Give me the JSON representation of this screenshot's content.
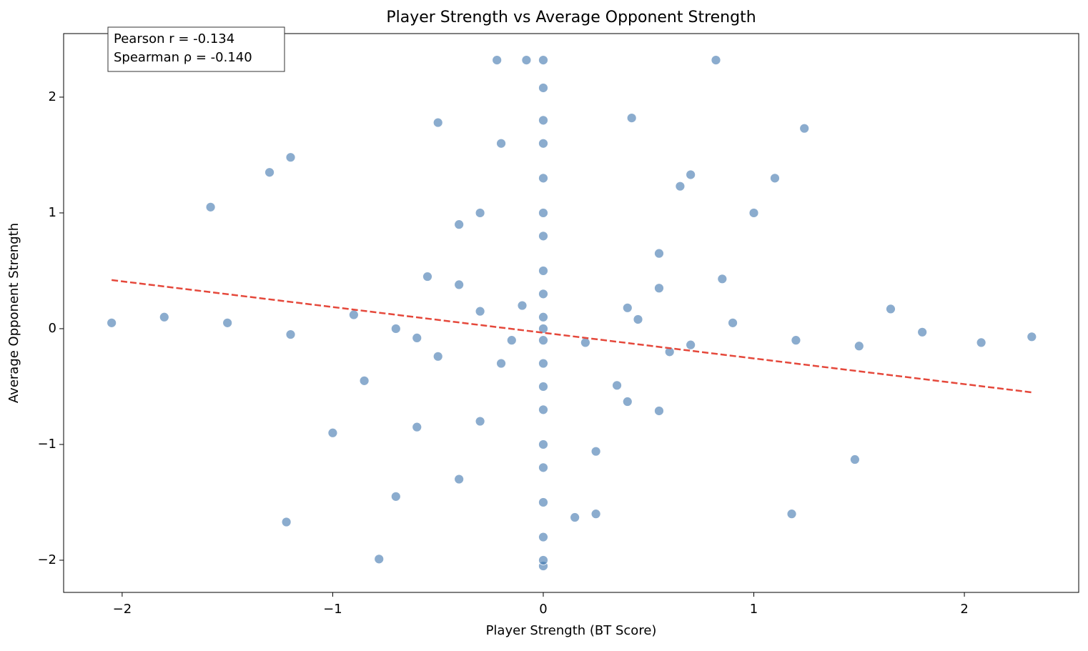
{
  "chart_data": {
    "type": "scatter",
    "title": "Player Strength vs Average Opponent Strength",
    "xlabel": "Player Strength (BT Score)",
    "ylabel": "Average Opponent Strength",
    "annotations": [
      "Pearson r = -0.134",
      "Spearman ρ = -0.140"
    ],
    "xlim": [
      -2.278,
      2.543
    ],
    "ylim": [
      -2.278,
      2.549
    ],
    "xticks": [
      {
        "value": -2,
        "label": "−2"
      },
      {
        "value": -1,
        "label": "−1"
      },
      0,
      1,
      2
    ],
    "yticks": [
      {
        "value": -2,
        "label": "−2"
      },
      {
        "value": -1,
        "label": "−1"
      },
      0,
      1,
      2
    ],
    "grid": false,
    "series": [
      {
        "color": "#3e74ae",
        "x": [
          0,
          0,
          0,
          0,
          0,
          0,
          0,
          0,
          0,
          0,
          0,
          0,
          0,
          0,
          0,
          0,
          0,
          0,
          0,
          0,
          0,
          -0.7,
          -0.6,
          -0.5,
          -0.4,
          -0.3,
          -0.2,
          -1.0,
          -0.85,
          -0.7,
          -0.55,
          -0.4,
          -0.4,
          -0.3,
          -0.2,
          -0.1,
          0.15,
          0.25,
          0.35,
          0.45,
          0.55,
          0.65,
          0.25,
          0.4,
          0.55,
          0.7,
          0.55,
          0.7,
          0.85,
          1.0,
          -1.8,
          -1.5,
          -1.2,
          -0.9,
          -0.6,
          -0.3,
          -0.15,
          0.2,
          0.4,
          0.6,
          0.9,
          1.2,
          1.5,
          1.8,
          2.08,
          1.65,
          -2.05,
          -1.2,
          -1.3,
          -1.58,
          -1.22,
          -0.78,
          1.18,
          1.48,
          2.32,
          0.82,
          -0.22,
          -0.08,
          1.24,
          1.1,
          -0.5,
          0.42
        ],
        "y": [
          -2.05,
          -2.0,
          -1.8,
          -1.5,
          -1.2,
          -1.0,
          -0.7,
          -0.5,
          -0.3,
          -0.1,
          0,
          0.1,
          0.3,
          0.5,
          0.8,
          1.0,
          1.3,
          1.6,
          1.8,
          2.08,
          2.32,
          -1.45,
          -0.85,
          -0.24,
          0.38,
          1.0,
          1.6,
          -0.9,
          -0.45,
          0,
          0.45,
          0.9,
          -1.3,
          -0.8,
          -0.3,
          0.2,
          -1.63,
          -1.06,
          -0.49,
          0.08,
          0.65,
          1.23,
          -1.6,
          -0.63,
          0.35,
          1.33,
          -0.71,
          -0.14,
          0.43,
          1.0,
          0.1,
          0.05,
          -0.05,
          0.12,
          -0.08,
          0.15,
          -0.1,
          -0.12,
          0.18,
          -0.2,
          0.05,
          -0.1,
          -0.15,
          -0.03,
          -0.12,
          0.17,
          0.05,
          1.48,
          1.35,
          1.05,
          -1.67,
          -1.99,
          -1.6,
          -1.13,
          -0.07,
          2.32,
          2.32,
          2.32,
          1.73,
          1.3,
          1.78,
          1.82
        ]
      }
    ],
    "trend": {
      "color": "#e5483b",
      "x": [
        -2.05,
        2.32
      ],
      "y": [
        0.42,
        -0.55
      ]
    }
  }
}
